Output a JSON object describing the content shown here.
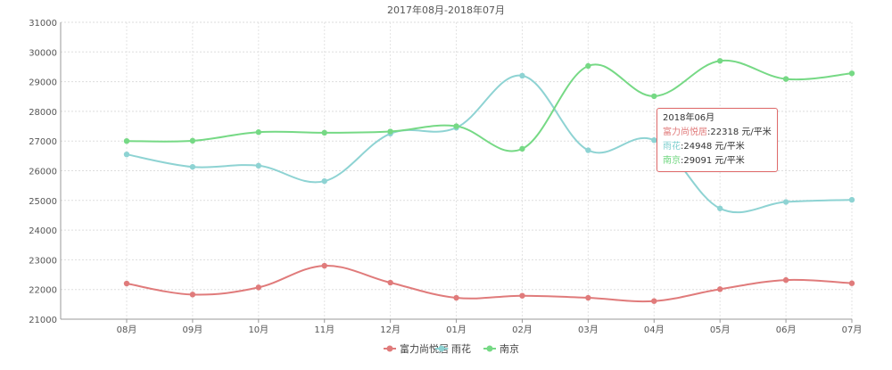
{
  "chart_data": {
    "type": "line",
    "title": "2017年08月-2018年07月",
    "categories": [
      "08月",
      "09月",
      "10月",
      "11月",
      "12月",
      "01月",
      "02月",
      "03月",
      "04月",
      "05月",
      "06月",
      "07月"
    ],
    "ylim": [
      21000,
      31000
    ],
    "yticks": [
      21000,
      22000,
      23000,
      24000,
      25000,
      26000,
      27000,
      28000,
      29000,
      30000,
      31000
    ],
    "grid": true,
    "legend_position": "bottom",
    "series": [
      {
        "name": "富力尚悦居",
        "color": "#e07b7b",
        "values": [
          22200,
          21830,
          22070,
          22800,
          22230,
          21720,
          21790,
          21720,
          21610,
          22010,
          22318,
          22210
        ]
      },
      {
        "name": "雨花",
        "color": "#8ed3d3",
        "values": [
          26550,
          26130,
          26170,
          25650,
          27250,
          27450,
          29200,
          26690,
          27030,
          24730,
          24948,
          25020
        ]
      },
      {
        "name": "南京",
        "color": "#76d985",
        "values": [
          27000,
          27010,
          27300,
          27280,
          27320,
          27500,
          26740,
          29530,
          28510,
          29700,
          29091,
          29280
        ]
      }
    ],
    "tooltip": {
      "title": "2018年06月",
      "unit": " 元/平米",
      "rows": [
        {
          "name": "富力尚悦居",
          "value": "22318"
        },
        {
          "name": "雨花",
          "value": "24948"
        },
        {
          "name": "南京",
          "value": "29091"
        }
      ]
    }
  }
}
